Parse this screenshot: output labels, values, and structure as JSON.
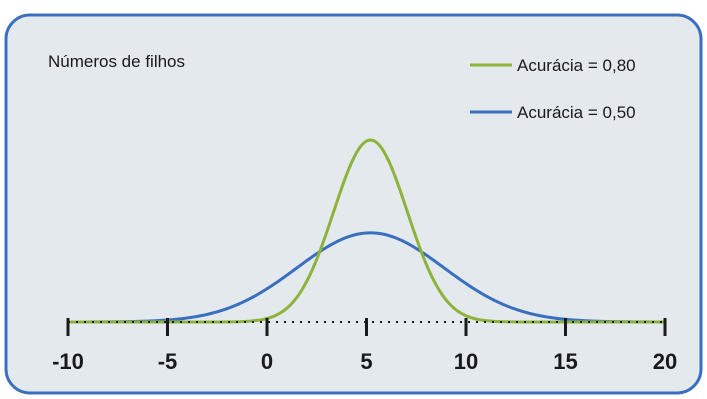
{
  "chart_data": {
    "type": "line",
    "title": "Números de filhos",
    "xlabel": "",
    "ylabel": "",
    "xlim": [
      -10,
      20
    ],
    "ylim": [
      0,
      1
    ],
    "x_ticks": [
      -10,
      -5,
      0,
      5,
      10,
      15,
      20
    ],
    "x_tick_labels": [
      "-10",
      "-5",
      "0",
      "5",
      "10",
      "15",
      "20"
    ],
    "grid": false,
    "legend_position": "top-right",
    "series": [
      {
        "name": "Acurácia = 0,80",
        "color": "#8db33a",
        "distribution": "normal",
        "mean": 5.2,
        "sd": 1.85,
        "peak": 1.0
      },
      {
        "name": "Acurácia = 0,50",
        "color": "#3a6fc0",
        "distribution": "normal",
        "mean": 5.2,
        "sd": 3.7,
        "peak": 0.49
      }
    ]
  }
}
